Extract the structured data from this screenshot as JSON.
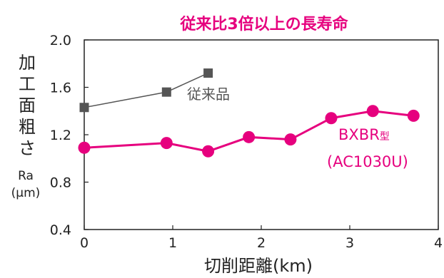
{
  "chart_data": {
    "type": "line",
    "title": "従来比3倍以上の長寿命",
    "xlabel": "切削距離(km)",
    "ylabel": "加工面粗さ",
    "ylabel_sub": "Ra",
    "ylabel_unit": "(μm)",
    "xlim": [
      0,
      4
    ],
    "ylim": [
      0.4,
      2.0
    ],
    "x_ticks": [
      "0",
      "1",
      "2",
      "3",
      "4"
    ],
    "y_ticks": [
      "0.4",
      "0.8",
      "1.2",
      "1.6",
      "2.0"
    ],
    "grid": false,
    "series": [
      {
        "name": "従来品",
        "color": "#555555",
        "marker": "square",
        "x": [
          0,
          0.93,
          1.4
        ],
        "y": [
          1.43,
          1.56,
          1.72
        ]
      },
      {
        "name": "BXBR型",
        "name_suffix": "(AC1030U)",
        "color": "#e6007e",
        "marker": "circle",
        "x": [
          0,
          0.93,
          1.4,
          1.86,
          2.33,
          2.79,
          3.26,
          3.72
        ],
        "y": [
          1.09,
          1.13,
          1.06,
          1.18,
          1.16,
          1.34,
          1.4,
          1.36
        ]
      }
    ]
  }
}
